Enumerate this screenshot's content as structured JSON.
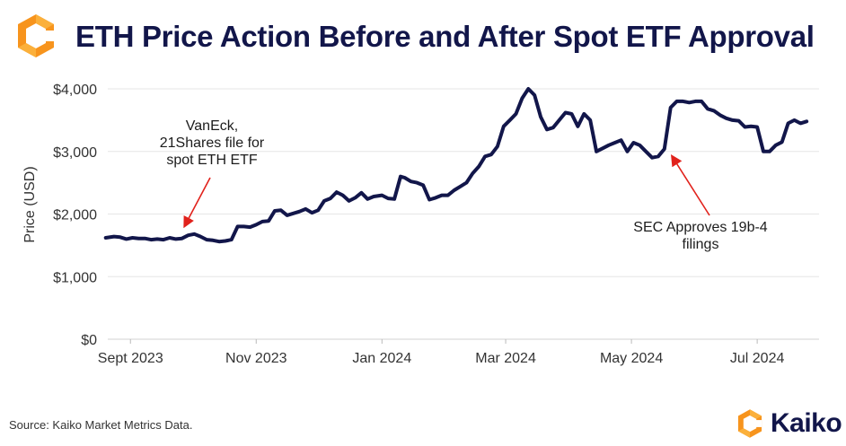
{
  "header": {
    "title": "ETH Price Action Before and After Spot ETF Approval"
  },
  "footer": {
    "source": "Source: Kaiko Market Metrics Data.",
    "brand": "Kaiko"
  },
  "colors": {
    "line": "#12164a",
    "title": "#12164a",
    "arrow": "#e1221c",
    "logo_orange": "#f7941d",
    "logo_yellow": "#fbb03b",
    "grid": "#e6e6e6"
  },
  "icons": {
    "header_logo": "kaiko-logo-icon",
    "footer_logo": "kaiko-logo-icon"
  },
  "chart_data": {
    "type": "line",
    "title": "ETH Price Action Before and After Spot ETF Approval",
    "ylabel": "Price (USD)",
    "xlabel": "",
    "ylim": [
      0,
      4000
    ],
    "yticks": [
      0,
      1000,
      2000,
      3000,
      4000
    ],
    "ytick_labels": [
      "$0",
      "$1,000",
      "$2,000",
      "$3,000",
      "$4,000"
    ],
    "xlim": [
      "2023-08-21",
      "2024-07-31"
    ],
    "xticks": [
      "2023-09-01",
      "2023-11-01",
      "2024-01-01",
      "2024-03-01",
      "2024-05-01",
      "2024-07-01"
    ],
    "xtick_labels": [
      "Sept 2023",
      "Nov 2023",
      "Jan 2024",
      "Mar 2024",
      "May 2024",
      "Jul 2024"
    ],
    "grid": "horizontal",
    "series": [
      {
        "x": [
          "2023-08-20",
          "2023-08-24",
          "2023-08-27",
          "2023-08-30",
          "2023-09-02",
          "2023-09-05",
          "2023-09-08",
          "2023-09-11",
          "2023-09-14",
          "2023-09-17",
          "2023-09-20",
          "2023-09-23",
          "2023-09-26",
          "2023-09-29",
          "2023-10-02",
          "2023-10-05",
          "2023-10-08",
          "2023-10-11",
          "2023-10-14",
          "2023-10-17",
          "2023-10-20",
          "2023-10-23",
          "2023-10-26",
          "2023-10-29",
          "2023-11-01",
          "2023-11-04",
          "2023-11-07",
          "2023-11-10",
          "2023-11-13",
          "2023-11-16",
          "2023-11-19",
          "2023-11-22",
          "2023-11-25",
          "2023-11-28",
          "2023-12-01",
          "2023-12-04",
          "2023-12-07",
          "2023-12-10",
          "2023-12-13",
          "2023-12-16",
          "2023-12-19",
          "2023-12-22",
          "2023-12-25",
          "2023-12-28",
          "2024-01-01",
          "2024-01-04",
          "2024-01-07",
          "2024-01-10",
          "2024-01-12",
          "2024-01-15",
          "2024-01-18",
          "2024-01-21",
          "2024-01-24",
          "2024-01-27",
          "2024-01-30",
          "2024-02-02",
          "2024-02-05",
          "2024-02-08",
          "2024-02-11",
          "2024-02-14",
          "2024-02-17",
          "2024-02-20",
          "2024-02-23",
          "2024-02-26",
          "2024-02-29",
          "2024-03-03",
          "2024-03-06",
          "2024-03-09",
          "2024-03-12",
          "2024-03-15",
          "2024-03-18",
          "2024-03-21",
          "2024-03-24",
          "2024-03-27",
          "2024-03-30",
          "2024-04-02",
          "2024-04-05",
          "2024-04-08",
          "2024-04-11",
          "2024-04-14",
          "2024-04-17",
          "2024-04-20",
          "2024-04-23",
          "2024-04-26",
          "2024-04-29",
          "2024-05-02",
          "2024-05-05",
          "2024-05-08",
          "2024-05-11",
          "2024-05-14",
          "2024-05-17",
          "2024-05-20",
          "2024-05-23",
          "2024-05-26",
          "2024-05-29",
          "2024-06-01",
          "2024-06-04",
          "2024-06-07",
          "2024-06-10",
          "2024-06-13",
          "2024-06-16",
          "2024-06-19",
          "2024-06-22",
          "2024-06-25",
          "2024-06-28",
          "2024-07-01",
          "2024-07-04",
          "2024-07-07",
          "2024-07-10",
          "2024-07-13",
          "2024-07-16",
          "2024-07-19",
          "2024-07-22",
          "2024-07-25"
        ],
        "values": [
          1620,
          1640,
          1630,
          1600,
          1620,
          1610,
          1610,
          1590,
          1600,
          1590,
          1620,
          1600,
          1610,
          1660,
          1680,
          1640,
          1590,
          1580,
          1560,
          1570,
          1590,
          1800,
          1800,
          1790,
          1830,
          1880,
          1890,
          2050,
          2060,
          1980,
          2010,
          2040,
          2080,
          2020,
          2060,
          2210,
          2250,
          2350,
          2300,
          2210,
          2260,
          2340,
          2240,
          2280,
          2300,
          2250,
          2240,
          2600,
          2580,
          2520,
          2500,
          2460,
          2230,
          2260,
          2300,
          2300,
          2380,
          2440,
          2500,
          2650,
          2760,
          2920,
          2950,
          3080,
          3400,
          3500,
          3600,
          3850,
          4000,
          3900,
          3550,
          3350,
          3380,
          3500,
          3620,
          3600,
          3400,
          3600,
          3500,
          3000,
          3050,
          3100,
          3140,
          3180,
          3000,
          3140,
          3100,
          3000,
          2900,
          2920,
          3040,
          3700,
          3800,
          3800,
          3780,
          3800,
          3800,
          3680,
          3650,
          3580,
          3530,
          3500,
          3490,
          3390,
          3400,
          3390,
          3000,
          3000,
          3100,
          3150,
          3450,
          3500,
          3450,
          3480
        ]
      }
    ],
    "annotations": [
      {
        "text": [
          "VanEck,",
          "21Shares file for",
          "spot ETH ETF"
        ],
        "x": "2023-09-30",
        "y": 1700
      },
      {
        "text": [
          "SEC Approves 19b-4",
          "filings"
        ],
        "x": "2024-05-20",
        "y": 3000
      }
    ]
  }
}
